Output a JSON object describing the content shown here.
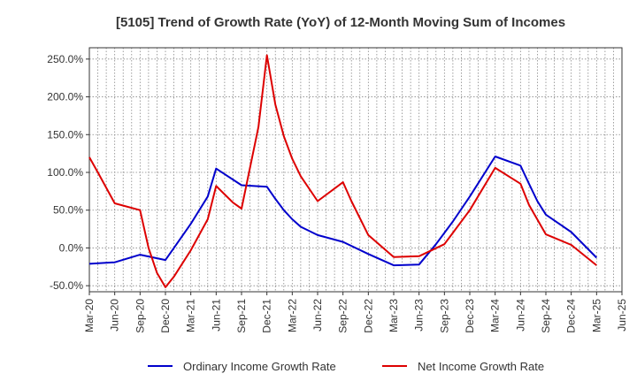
{
  "chart_data": {
    "type": "line",
    "title": "[5105]  Trend of Growth Rate (YoY) of 12-Month Moving Sum of Incomes",
    "xlabel": "",
    "ylabel": "",
    "x_ticks": [
      "Mar-20",
      "Jun-20",
      "Sep-20",
      "Dec-20",
      "Mar-21",
      "Jun-21",
      "Sep-21",
      "Dec-21",
      "Mar-22",
      "Jun-22",
      "Sep-22",
      "Dec-22",
      "Mar-23",
      "Jun-23",
      "Sep-23",
      "Dec-23",
      "Mar-24",
      "Jun-24",
      "Sep-24",
      "Dec-24",
      "Mar-25",
      "Jun-25"
    ],
    "y_ticks": [
      "250.0%",
      "200.0%",
      "150.0%",
      "100.0%",
      "50.0%",
      "0.0%",
      "-50.0%"
    ],
    "y_tick_values": [
      250,
      200,
      150,
      100,
      50,
      0,
      -50
    ],
    "ylim": [
      -58,
      265
    ],
    "x_range_months": [
      0,
      63
    ],
    "grid": true,
    "legend_position": "bottom",
    "series": [
      {
        "name": "Ordinary Income Growth Rate",
        "color": "#0000cc",
        "points": [
          {
            "m": 0,
            "v": -21
          },
          {
            "m": 3,
            "v": -19
          },
          {
            "m": 6,
            "v": -9
          },
          {
            "m": 9,
            "v": -16
          },
          {
            "m": 10,
            "v": 0
          },
          {
            "m": 12,
            "v": 32
          },
          {
            "m": 14,
            "v": 68
          },
          {
            "m": 15,
            "v": 105
          },
          {
            "m": 18,
            "v": 83
          },
          {
            "m": 21,
            "v": 81
          },
          {
            "m": 22,
            "v": 65
          },
          {
            "m": 23,
            "v": 50
          },
          {
            "m": 24,
            "v": 38
          },
          {
            "m": 25,
            "v": 28
          },
          {
            "m": 27,
            "v": 17
          },
          {
            "m": 30,
            "v": 8
          },
          {
            "m": 33,
            "v": -8
          },
          {
            "m": 36,
            "v": -23
          },
          {
            "m": 39,
            "v": -22
          },
          {
            "m": 41,
            "v": 5
          },
          {
            "m": 43,
            "v": 35
          },
          {
            "m": 45,
            "v": 68
          },
          {
            "m": 48,
            "v": 121
          },
          {
            "m": 51,
            "v": 109
          },
          {
            "m": 52,
            "v": 85
          },
          {
            "m": 53,
            "v": 62
          },
          {
            "m": 54,
            "v": 44
          },
          {
            "m": 57,
            "v": 21
          },
          {
            "m": 60,
            "v": -13
          }
        ]
      },
      {
        "name": "Net Income Growth Rate",
        "color": "#dd0000",
        "points": [
          {
            "m": 0,
            "v": 120
          },
          {
            "m": 1,
            "v": 100
          },
          {
            "m": 3,
            "v": 59
          },
          {
            "m": 6,
            "v": 50
          },
          {
            "m": 7,
            "v": 0
          },
          {
            "m": 8,
            "v": -33
          },
          {
            "m": 9,
            "v": -52
          },
          {
            "m": 10,
            "v": -38
          },
          {
            "m": 12,
            "v": -3
          },
          {
            "m": 14,
            "v": 38
          },
          {
            "m": 15,
            "v": 82
          },
          {
            "m": 17,
            "v": 60
          },
          {
            "m": 18,
            "v": 52
          },
          {
            "m": 20,
            "v": 160
          },
          {
            "m": 21,
            "v": 255
          },
          {
            "m": 22,
            "v": 190
          },
          {
            "m": 23,
            "v": 148
          },
          {
            "m": 24,
            "v": 118
          },
          {
            "m": 25,
            "v": 95
          },
          {
            "m": 27,
            "v": 62
          },
          {
            "m": 30,
            "v": 87
          },
          {
            "m": 31,
            "v": 62
          },
          {
            "m": 33,
            "v": 17
          },
          {
            "m": 36,
            "v": -12
          },
          {
            "m": 39,
            "v": -11
          },
          {
            "m": 42,
            "v": 5
          },
          {
            "m": 45,
            "v": 50
          },
          {
            "m": 48,
            "v": 106
          },
          {
            "m": 51,
            "v": 85
          },
          {
            "m": 52,
            "v": 57
          },
          {
            "m": 54,
            "v": 18
          },
          {
            "m": 57,
            "v": 4
          },
          {
            "m": 60,
            "v": -23
          }
        ]
      }
    ]
  }
}
